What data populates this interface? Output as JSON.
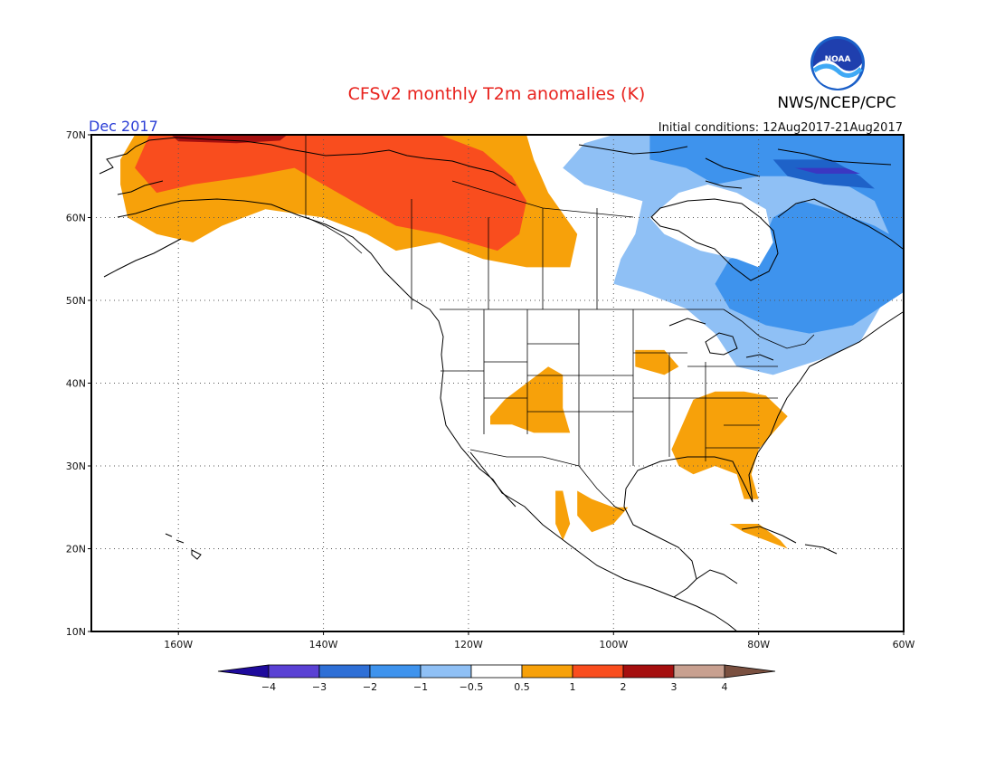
{
  "header": {
    "title": "CFSv2 monthly T2m anomalies (K)",
    "agency": "NWS/NCEP/CPC",
    "logo_text": "NOAA",
    "month": "Dec 2017",
    "initial_conditions": "Initial conditions: 12Aug2017-21Aug2017"
  },
  "map": {
    "lon_range": [
      -172,
      -60
    ],
    "lat_range": [
      10,
      70
    ],
    "lat_ticks": [
      {
        "value": 70,
        "label": "70N"
      },
      {
        "value": 60,
        "label": "60N"
      },
      {
        "value": 50,
        "label": "50N"
      },
      {
        "value": 40,
        "label": "40N"
      },
      {
        "value": 30,
        "label": "30N"
      },
      {
        "value": 20,
        "label": "20N"
      },
      {
        "value": 10,
        "label": "10N"
      }
    ],
    "lon_ticks": [
      {
        "value": -160,
        "label": "160W"
      },
      {
        "value": -140,
        "label": "140W"
      },
      {
        "value": -120,
        "label": "120W"
      },
      {
        "value": -100,
        "label": "100W"
      },
      {
        "value": -80,
        "label": "80W"
      },
      {
        "value": -60,
        "label": "60W"
      }
    ],
    "anomaly_regions": [
      {
        "name": "alaska-canada-warm",
        "level": 0.5,
        "color": "#f7a10a",
        "points": [
          [
            -166,
            70
          ],
          [
            -112,
            70
          ],
          [
            -111,
            67
          ],
          [
            -109,
            63
          ],
          [
            -105,
            58
          ],
          [
            -106,
            54
          ],
          [
            -112,
            54
          ],
          [
            -118,
            55
          ],
          [
            -124,
            57
          ],
          [
            -130,
            56
          ],
          [
            -134,
            58
          ],
          [
            -140,
            60
          ],
          [
            -148,
            61
          ],
          [
            -154,
            59
          ],
          [
            -158,
            57
          ],
          [
            -163,
            58
          ],
          [
            -167,
            60
          ],
          [
            -168,
            64
          ],
          [
            -168,
            67
          ]
        ]
      },
      {
        "name": "alaska-canada-1K",
        "level": 1,
        "color": "#f94d1e",
        "points": [
          [
            -164,
            70
          ],
          [
            -124,
            70
          ],
          [
            -118,
            68
          ],
          [
            -114,
            65
          ],
          [
            -112,
            62
          ],
          [
            -113,
            58
          ],
          [
            -116,
            56
          ],
          [
            -124,
            58
          ],
          [
            -130,
            59
          ],
          [
            -136,
            62
          ],
          [
            -144,
            66
          ],
          [
            -150,
            65
          ],
          [
            -158,
            64
          ],
          [
            -163,
            63
          ],
          [
            -166,
            66
          ]
        ]
      },
      {
        "name": "alaska-2K",
        "level": 2,
        "color": "#a50f0f",
        "points": [
          [
            -161,
            70
          ],
          [
            -145,
            70
          ],
          [
            -146,
            69.3
          ],
          [
            -152,
            69
          ],
          [
            -160,
            69.2
          ]
        ]
      },
      {
        "name": "southwest-warm",
        "level": 0.5,
        "color": "#f7a10a",
        "points": [
          [
            -115,
            38
          ],
          [
            -112,
            40
          ],
          [
            -109,
            42
          ],
          [
            -107,
            41
          ],
          [
            -107,
            37
          ],
          [
            -106,
            34
          ],
          [
            -111,
            34
          ],
          [
            -114,
            35
          ],
          [
            -117,
            35
          ],
          [
            -117,
            36
          ]
        ]
      },
      {
        "name": "midwest-warm",
        "level": 0.5,
        "color": "#f7a10a",
        "points": [
          [
            -97,
            44
          ],
          [
            -93,
            44
          ],
          [
            -91,
            42
          ],
          [
            -93,
            41
          ],
          [
            -97,
            42
          ]
        ]
      },
      {
        "name": "southeast-warm",
        "level": 0.5,
        "color": "#f7a10a",
        "points": [
          [
            -89,
            38
          ],
          [
            -86,
            39
          ],
          [
            -82,
            39
          ],
          [
            -79,
            38.5
          ],
          [
            -76,
            36
          ],
          [
            -78,
            34
          ],
          [
            -80,
            32
          ],
          [
            -81,
            29
          ],
          [
            -80,
            26
          ],
          [
            -82,
            26
          ],
          [
            -83,
            29
          ],
          [
            -86,
            30
          ],
          [
            -89,
            29
          ],
          [
            -91,
            30
          ],
          [
            -92,
            32
          ],
          [
            -90,
            36
          ]
        ]
      },
      {
        "name": "mexico-warm-1",
        "level": 0.5,
        "color": "#f7a10a",
        "points": [
          [
            -108,
            27
          ],
          [
            -107,
            27
          ],
          [
            -106,
            23
          ],
          [
            -107,
            21
          ],
          [
            -108,
            23
          ]
        ]
      },
      {
        "name": "mexico-warm-2",
        "level": 0.5,
        "color": "#f7a10a",
        "points": [
          [
            -105,
            27
          ],
          [
            -103,
            26
          ],
          [
            -100,
            25
          ],
          [
            -98,
            25
          ],
          [
            -100,
            23
          ],
          [
            -103,
            22
          ],
          [
            -105,
            24
          ]
        ]
      },
      {
        "name": "cuba-warm",
        "level": 0.5,
        "color": "#f7a10a",
        "points": [
          [
            -84,
            23
          ],
          [
            -80,
            23
          ],
          [
            -77,
            21
          ],
          [
            -76,
            20
          ],
          [
            -79,
            21
          ],
          [
            -82,
            22
          ]
        ]
      },
      {
        "name": "canada-cool-outer",
        "level": -0.5,
        "color": "#8fc0f5",
        "points": [
          [
            -100,
            70
          ],
          [
            -92,
            70
          ],
          [
            -84,
            70
          ],
          [
            -74,
            69
          ],
          [
            -66,
            68
          ],
          [
            -60,
            67
          ],
          [
            -60,
            54
          ],
          [
            -66,
            45
          ],
          [
            -71,
            43
          ],
          [
            -78,
            41
          ],
          [
            -83,
            42
          ],
          [
            -86,
            46
          ],
          [
            -90,
            49
          ],
          [
            -96,
            51
          ],
          [
            -100,
            52
          ],
          [
            -99,
            55
          ],
          [
            -97,
            58
          ],
          [
            -96,
            62
          ],
          [
            -104,
            64
          ],
          [
            -107,
            66
          ],
          [
            -104,
            69
          ]
        ]
      },
      {
        "name": "canada-cool-inner",
        "level": -1,
        "color": "#3e93ed",
        "points": [
          [
            -95,
            70
          ],
          [
            -60,
            70
          ],
          [
            -60,
            51
          ],
          [
            -67,
            47
          ],
          [
            -73,
            46
          ],
          [
            -79,
            47
          ],
          [
            -84,
            49
          ],
          [
            -86,
            52
          ],
          [
            -84,
            55
          ],
          [
            -80,
            56
          ],
          [
            -78,
            60
          ],
          [
            -74,
            62
          ],
          [
            -70,
            61
          ],
          [
            -64,
            59
          ],
          [
            -62,
            58
          ],
          [
            -64,
            62
          ],
          [
            -70,
            65
          ],
          [
            -80,
            65
          ],
          [
            -86,
            64
          ],
          [
            -90,
            66
          ],
          [
            -95,
            67
          ]
        ]
      },
      {
        "name": "hudson-bay-neutral",
        "level": 0,
        "color": "#ffffff",
        "points": [
          [
            -95,
            60
          ],
          [
            -91,
            63
          ],
          [
            -87,
            64
          ],
          [
            -83,
            63
          ],
          [
            -79,
            61
          ],
          [
            -78,
            57
          ],
          [
            -80,
            54
          ],
          [
            -83,
            55
          ],
          [
            -88,
            56
          ],
          [
            -93,
            58
          ]
        ]
      },
      {
        "name": "baffin-cool-2K",
        "level": -2,
        "color": "#1e62c8",
        "points": [
          [
            -78,
            67
          ],
          [
            -70,
            67
          ],
          [
            -66,
            65
          ],
          [
            -64,
            63.5
          ],
          [
            -71,
            64
          ],
          [
            -76,
            65
          ]
        ]
      },
      {
        "name": "arctic-cool-3K",
        "level": -3,
        "color": "#3a37c2",
        "points": [
          [
            -75,
            66
          ],
          [
            -68,
            66
          ],
          [
            -66,
            65.3
          ],
          [
            -72,
            65.3
          ]
        ]
      }
    ],
    "colorbar": {
      "labels": [
        "-4",
        "-3",
        "-2",
        "-1",
        "-0.5",
        "0.5",
        "1",
        "2",
        "3",
        "4"
      ],
      "colors": [
        "#1e0a9c",
        "#5a41d4",
        "#2e6fd6",
        "#3e93ed",
        "#8fc0f5",
        "#ffffff",
        "#f7a10a",
        "#f94d1e",
        "#a50f0f",
        "#c8a090",
        "#7a5040"
      ]
    }
  }
}
